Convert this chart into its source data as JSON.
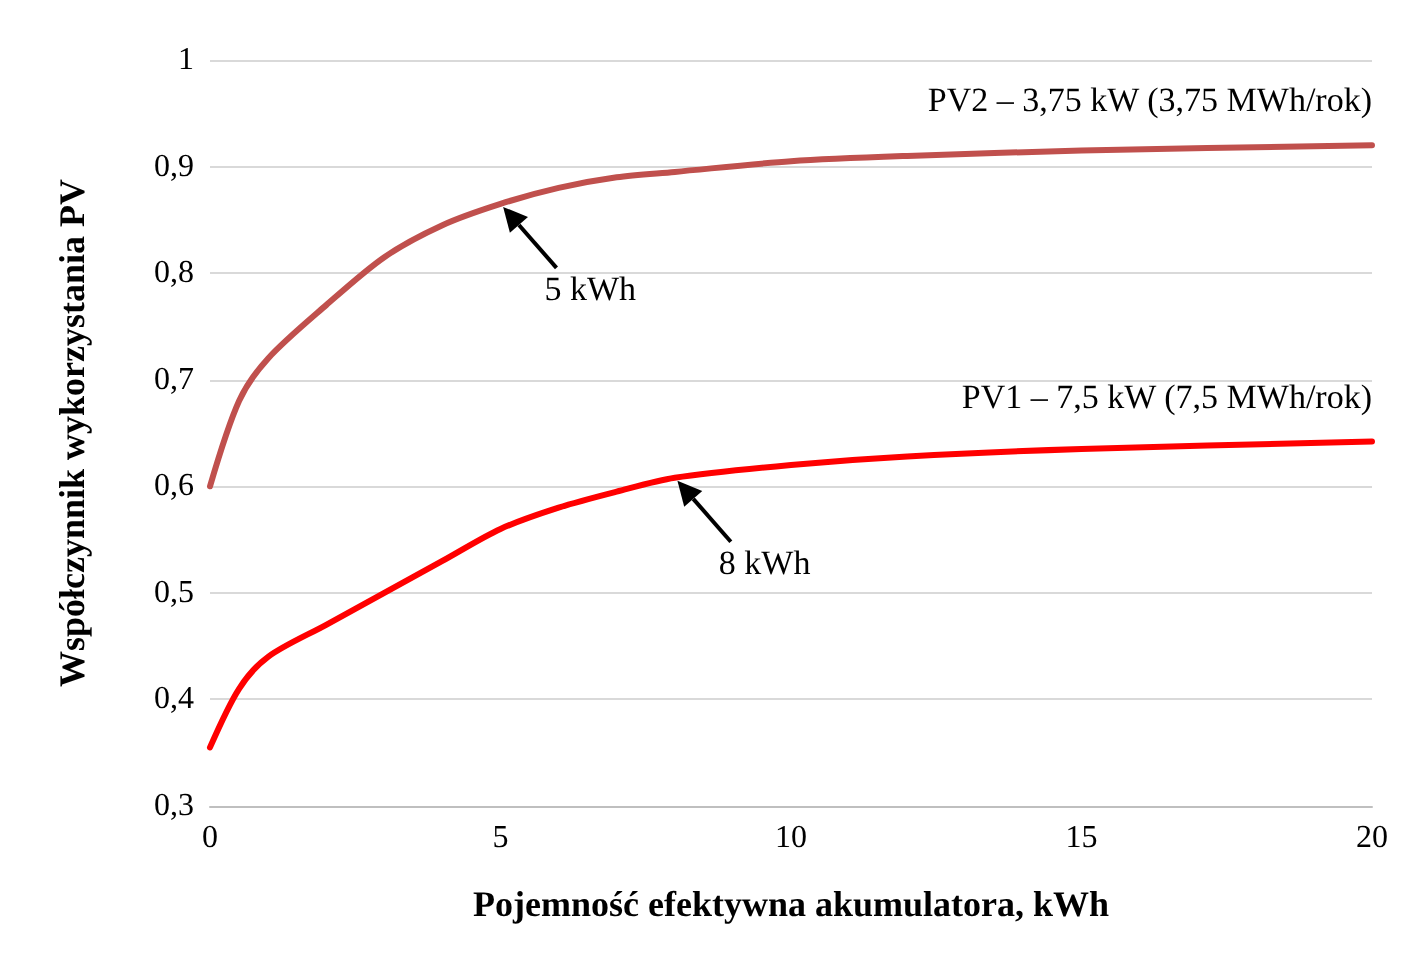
{
  "chart_data": {
    "type": "line",
    "xlabel": "Pojemność efektywna akumulatora, kWh",
    "ylabel": "Współczynnik wykorzystania PV",
    "x": [
      0,
      0.5,
      1,
      2,
      3,
      4,
      5,
      6,
      7,
      8,
      10,
      12,
      15,
      20
    ],
    "series": [
      {
        "name": "PV2 – 3,75 kW (3,75 MWh/rok)",
        "color": "#c0504d",
        "values": [
          0.6,
          0.68,
          0.72,
          0.77,
          0.815,
          0.845,
          0.865,
          0.88,
          0.89,
          0.895,
          0.905,
          0.91,
          0.915,
          0.92
        ]
      },
      {
        "name": "PV1 – 7,5 kW (7,5 MWh/rok)",
        "color": "#ff0000",
        "values": [
          0.355,
          0.41,
          0.44,
          0.47,
          0.5,
          0.53,
          0.56,
          0.58,
          0.595,
          0.608,
          0.62,
          0.628,
          0.635,
          0.642
        ]
      }
    ],
    "xlim": [
      0,
      20
    ],
    "xticks": [
      0,
      5,
      10,
      15,
      20
    ],
    "ylim": [
      0.3,
      1
    ],
    "yticks": [
      {
        "value": 0.3,
        "label": "0,3"
      },
      {
        "value": 0.4,
        "label": "0,4"
      },
      {
        "value": 0.5,
        "label": "0,5"
      },
      {
        "value": 0.6,
        "label": "0,6"
      },
      {
        "value": 0.7,
        "label": "0,7"
      },
      {
        "value": 0.8,
        "label": "0,8"
      },
      {
        "value": 0.9,
        "label": "0,9"
      },
      {
        "value": 1,
        "label": "1"
      }
    ],
    "grid": "y",
    "marker": "none",
    "line_style": "solid",
    "legend": false,
    "annotations": [
      {
        "text": "5 kWh",
        "x": 5,
        "y": 0.865
      },
      {
        "text": "8 kWh",
        "x": 8,
        "y": 0.608
      }
    ]
  }
}
